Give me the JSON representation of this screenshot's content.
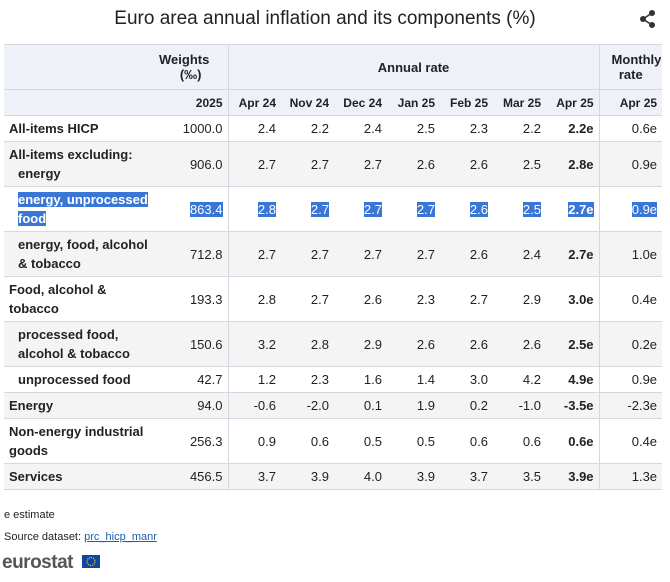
{
  "title": "Euro area annual inflation and its components (%)",
  "table": {
    "header": {
      "weights": "Weights (‰)",
      "annual": "Annual rate",
      "monthly": "Monthly rate",
      "periods": [
        "2025",
        "Apr 24",
        "Nov 24",
        "Dec 24",
        "Jan 25",
        "Feb 25",
        "Mar 25",
        "Apr 25",
        "Apr 25"
      ]
    },
    "rows": [
      {
        "label": "All-items HICP",
        "cells": [
          "1000.0",
          "2.4",
          "2.2",
          "2.4",
          "2.5",
          "2.3",
          "2.2",
          "2.2e",
          "0.6e"
        ]
      },
      {
        "label": "All-items excluding:",
        "sublabel": "energy",
        "cells": [
          "906.0",
          "2.7",
          "2.7",
          "2.7",
          "2.6",
          "2.6",
          "2.5",
          "2.8e",
          "0.9e"
        ]
      },
      {
        "label": "energy, unprocessed food",
        "cells": [
          "863.4",
          "2.8",
          "2.7",
          "2.7",
          "2.7",
          "2.6",
          "2.5",
          "2.7e",
          "0.9e"
        ]
      },
      {
        "label": "energy, food, alcohol & tobacco",
        "cells": [
          "712.8",
          "2.7",
          "2.7",
          "2.7",
          "2.7",
          "2.6",
          "2.4",
          "2.7e",
          "1.0e"
        ]
      },
      {
        "label": "Food, alcohol & tobacco",
        "cells": [
          "193.3",
          "2.8",
          "2.7",
          "2.6",
          "2.3",
          "2.7",
          "2.9",
          "3.0e",
          "0.4e"
        ]
      },
      {
        "label": "processed food, alcohol & tobacco",
        "cells": [
          "150.6",
          "3.2",
          "2.8",
          "2.9",
          "2.6",
          "2.6",
          "2.6",
          "2.5e",
          "0.2e"
        ]
      },
      {
        "label": "unprocessed food",
        "cells": [
          "42.7",
          "1.2",
          "2.3",
          "1.6",
          "1.4",
          "3.0",
          "4.2",
          "4.9e",
          "0.9e"
        ]
      },
      {
        "label": "Energy",
        "cells": [
          "94.0",
          "-0.6",
          "-2.0",
          "0.1",
          "1.9",
          "0.2",
          "-1.0",
          "-3.5e",
          "-2.3e"
        ]
      },
      {
        "label": "Non-energy industrial goods",
        "cells": [
          "256.3",
          "0.9",
          "0.6",
          "0.5",
          "0.5",
          "0.6",
          "0.6",
          "0.6e",
          "0.4e"
        ]
      },
      {
        "label": "Services",
        "cells": [
          "456.5",
          "3.7",
          "3.9",
          "4.0",
          "3.9",
          "3.7",
          "3.5",
          "3.9e",
          "1.3e"
        ]
      }
    ]
  },
  "note": "e estimate",
  "source_label": "Source dataset:",
  "source_link": "prc_hicp_manr",
  "logo": "eurostat"
}
